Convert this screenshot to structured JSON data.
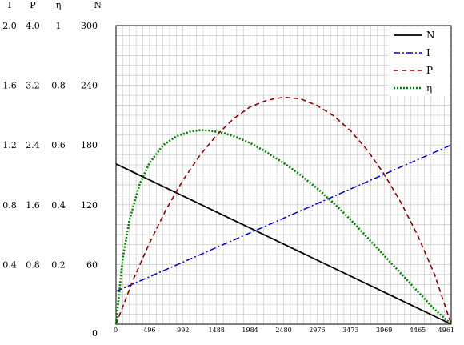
{
  "chart_data": {
    "type": "line",
    "title": "",
    "xlabel": "",
    "ylabel": "",
    "x_ticks": [
      "0",
      "496",
      "992",
      "1488",
      "1984",
      "2480",
      "2976",
      "3473",
      "3969",
      "4465",
      "4961"
    ],
    "xlim": [
      0,
      4961
    ],
    "axis_headers": [
      "I",
      "P",
      "η",
      "N"
    ],
    "y_ticks": {
      "N": [
        "300",
        "240",
        "180",
        "120",
        "60",
        "0"
      ],
      "I": [
        "2.0",
        "1.6",
        "1.2",
        "0.8",
        "0.4",
        ""
      ],
      "P": [
        "4.0",
        "3.2",
        "2.4",
        "1.6",
        "0.8",
        ""
      ],
      "eta": [
        "1",
        "0.8",
        "0.6",
        "0.4",
        "0.2",
        ""
      ]
    },
    "ylim_N": [
      0,
      300
    ],
    "grid": true,
    "legend_position": "top-right",
    "series": [
      {
        "name": "N",
        "axis": "N",
        "color": "#000000",
        "style": "solid",
        "points": [
          [
            0,
            161
          ],
          [
            4961,
            0
          ]
        ]
      },
      {
        "name": "I",
        "axis": "I",
        "color": "#0000cc",
        "style": "dashdot",
        "points": [
          [
            0,
            0.22
          ],
          [
            4961,
            1.2
          ]
        ]
      },
      {
        "name": "P",
        "axis": "P",
        "color": "#8b0000",
        "style": "dashed",
        "points": [
          [
            0,
            0
          ],
          [
            248,
            0.58
          ],
          [
            496,
            1.09
          ],
          [
            744,
            1.54
          ],
          [
            992,
            1.93
          ],
          [
            1240,
            2.26
          ],
          [
            1488,
            2.53
          ],
          [
            1736,
            2.75
          ],
          [
            1984,
            2.91
          ],
          [
            2232,
            3.0
          ],
          [
            2480,
            3.04
          ],
          [
            2728,
            3.02
          ],
          [
            2976,
            2.93
          ],
          [
            3224,
            2.79
          ],
          [
            3473,
            2.59
          ],
          [
            3721,
            2.33
          ],
          [
            3969,
            2.01
          ],
          [
            4217,
            1.63
          ],
          [
            4465,
            1.19
          ],
          [
            4713,
            0.67
          ],
          [
            4961,
            0
          ]
        ]
      },
      {
        "name": "η",
        "axis": "eta",
        "color": "#008000",
        "style": "dotted",
        "points": [
          [
            0,
            0
          ],
          [
            100,
            0.22
          ],
          [
            200,
            0.35
          ],
          [
            350,
            0.47
          ],
          [
            496,
            0.54
          ],
          [
            700,
            0.6
          ],
          [
            900,
            0.63
          ],
          [
            1100,
            0.645
          ],
          [
            1250,
            0.65
          ],
          [
            1400,
            0.648
          ],
          [
            1600,
            0.64
          ],
          [
            1800,
            0.625
          ],
          [
            2000,
            0.605
          ],
          [
            2200,
            0.58
          ],
          [
            2480,
            0.54
          ],
          [
            2700,
            0.505
          ],
          [
            2976,
            0.455
          ],
          [
            3224,
            0.405
          ],
          [
            3473,
            0.35
          ],
          [
            3721,
            0.29
          ],
          [
            3969,
            0.23
          ],
          [
            4217,
            0.17
          ],
          [
            4465,
            0.11
          ],
          [
            4713,
            0.05
          ],
          [
            4961,
            0
          ]
        ]
      }
    ]
  }
}
